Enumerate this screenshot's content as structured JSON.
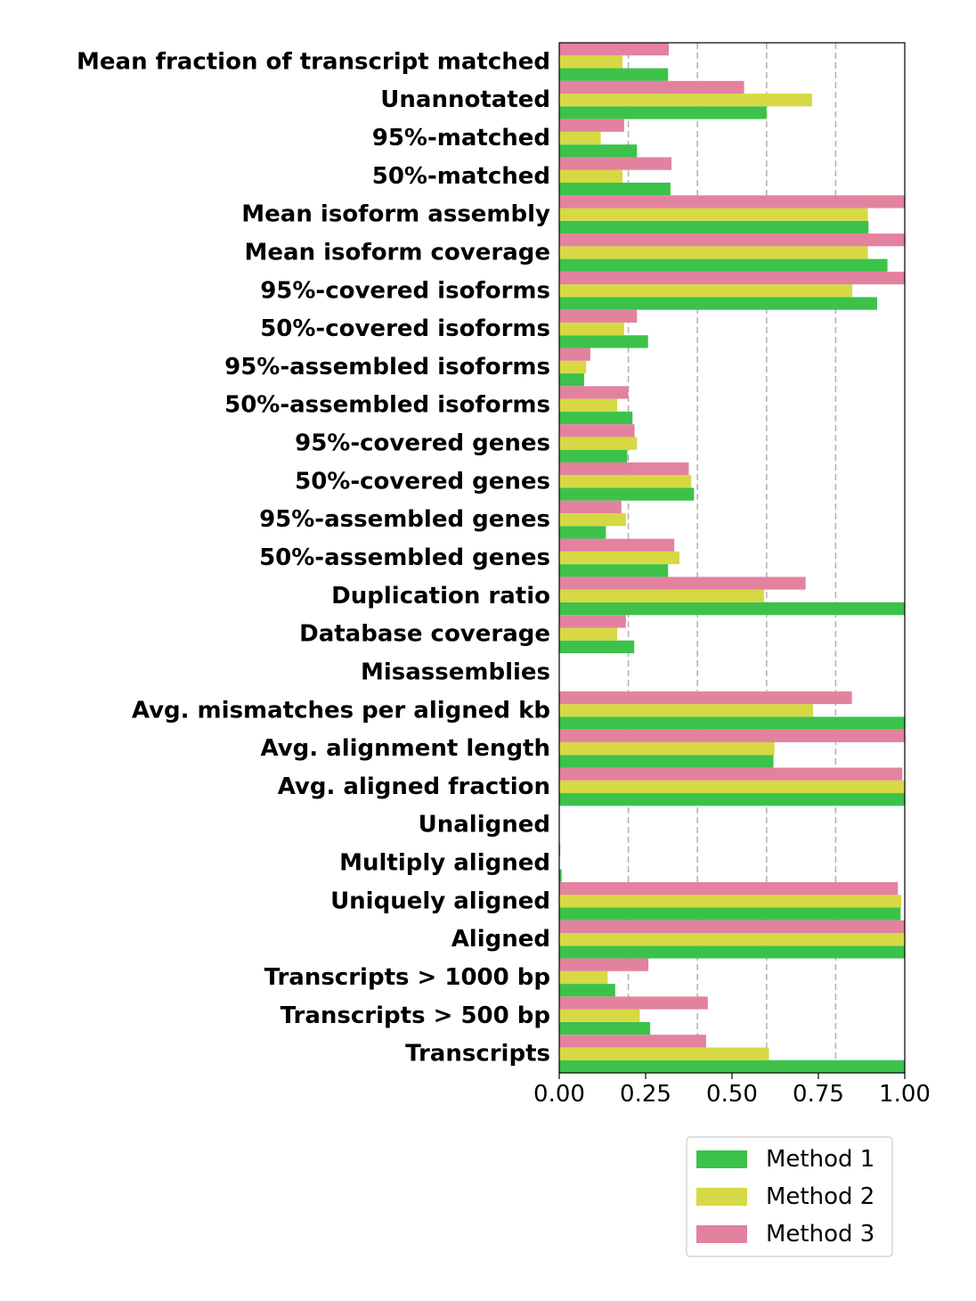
{
  "chart_data": {
    "type": "bar",
    "orientation": "horizontal",
    "title": "",
    "xlabel": "",
    "ylabel": "",
    "xlim": [
      0,
      1.0
    ],
    "x_ticks": [
      "0.00",
      "0.25",
      "0.50",
      "0.75",
      "1.00"
    ],
    "x_tick_values": [
      0,
      0.25,
      0.5,
      0.75,
      1.0
    ],
    "grid_lines": [
      0.2,
      0.4,
      0.6,
      0.8
    ],
    "grid": "vertical-dashed",
    "legend_position": "bottom-right",
    "categories": [
      "Mean fraction of transcript matched",
      "Unannotated",
      "95%-matched",
      "50%-matched",
      "Mean isoform assembly",
      "Mean isoform coverage",
      "95%-covered isoforms",
      "50%-covered isoforms",
      "95%-assembled isoforms",
      "50%-assembled isoforms",
      "95%-covered genes",
      "50%-covered genes",
      "95%-assembled genes",
      "50%-assembled genes",
      "Duplication ratio",
      "Database coverage",
      "Misassemblies",
      "Avg. mismatches per aligned kb",
      "Avg. alignment length",
      "Avg. aligned fraction",
      "Unaligned",
      "Multiply aligned",
      "Uniquely aligned",
      "Aligned",
      "Transcripts > 1000 bp",
      "Transcripts > 500 bp",
      "Transcripts"
    ],
    "series": [
      {
        "name": "Method 1",
        "color": "#3cc24a",
        "values": [
          0.315,
          0.6,
          0.225,
          0.322,
          0.895,
          0.95,
          0.92,
          0.257,
          0.072,
          0.212,
          0.197,
          0.39,
          0.135,
          0.315,
          1.0,
          0.217,
          0.0,
          1.0,
          0.62,
          1.0,
          0.0,
          0.007,
          0.988,
          1.0,
          0.162,
          0.263,
          1.0
        ]
      },
      {
        "name": "Method 2",
        "color": "#d6d943",
        "values": [
          0.183,
          0.732,
          0.12,
          0.183,
          0.893,
          0.893,
          0.848,
          0.188,
          0.078,
          0.168,
          0.225,
          0.382,
          0.193,
          0.348,
          0.593,
          0.168,
          0.0,
          0.735,
          0.623,
          1.0,
          0.0,
          0.0,
          0.99,
          1.0,
          0.14,
          0.233,
          0.607
        ]
      },
      {
        "name": "Method 3",
        "color": "#e3829f",
        "values": [
          0.317,
          0.535,
          0.188,
          0.325,
          1.0,
          1.0,
          1.0,
          0.225,
          0.09,
          0.2,
          0.218,
          0.375,
          0.18,
          0.333,
          0.713,
          0.193,
          0.0,
          0.847,
          1.0,
          0.993,
          0.0,
          0.003,
          0.98,
          1.0,
          0.258,
          0.43,
          0.425
        ]
      }
    ]
  }
}
